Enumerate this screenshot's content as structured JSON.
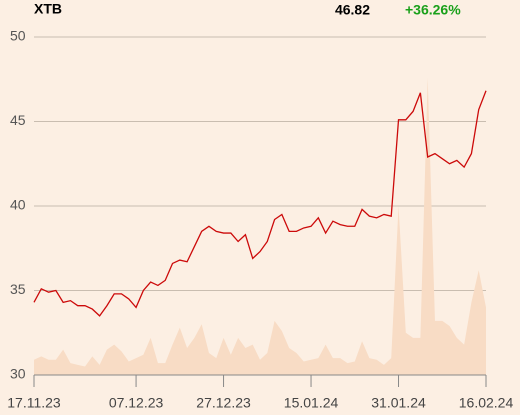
{
  "chart_data": {
    "type": "line",
    "title": "XTB",
    "price_label": "46.82",
    "change_label": "+36.26%",
    "change_color": "#1aa01a",
    "categories": [
      "17.11.23",
      null,
      null,
      null,
      null,
      null,
      null,
      null,
      null,
      null,
      null,
      null,
      null,
      null,
      "07.12.23",
      null,
      null,
      null,
      null,
      null,
      null,
      null,
      null,
      null,
      null,
      null,
      "27.12.23",
      null,
      null,
      null,
      null,
      null,
      null,
      null,
      null,
      null,
      null,
      null,
      "15.01.24",
      null,
      null,
      null,
      null,
      null,
      null,
      null,
      null,
      null,
      null,
      null,
      "31.01.24",
      null,
      null,
      null,
      null,
      null,
      null,
      null,
      null,
      null,
      null,
      null,
      "16.02.24"
    ],
    "series": [
      {
        "color": "#cc0a0a",
        "kind": "line",
        "values": [
          34.3,
          35.1,
          34.9,
          35.0,
          34.3,
          34.4,
          34.1,
          34.1,
          33.9,
          33.5,
          34.1,
          34.8,
          34.8,
          34.5,
          34.0,
          35.0,
          35.5,
          35.3,
          35.6,
          36.6,
          36.8,
          36.7,
          37.6,
          38.5,
          38.8,
          38.5,
          38.4,
          38.4,
          37.9,
          38.3,
          36.9,
          37.3,
          37.9,
          39.2,
          39.5,
          38.5,
          38.5,
          38.7,
          38.8,
          39.3,
          38.4,
          39.1,
          38.9,
          38.8,
          38.8,
          39.8,
          39.4,
          39.3,
          39.5,
          39.4,
          45.1,
          45.1,
          45.6,
          46.7,
          42.9,
          43.1,
          42.8,
          42.5,
          42.7,
          42.3,
          43.1,
          45.7,
          46.82
        ]
      },
      {
        "color": "#f8dcc5",
        "kind": "area",
        "values": [
          30.9,
          31.1,
          30.9,
          30.9,
          31.5,
          30.7,
          30.6,
          30.5,
          31.1,
          30.6,
          31.5,
          31.8,
          31.4,
          30.8,
          31.0,
          31.2,
          32.2,
          30.7,
          30.7,
          31.8,
          32.8,
          31.6,
          32.2,
          33.0,
          31.3,
          31.0,
          32.2,
          31.2,
          32.2,
          31.6,
          31.8,
          30.9,
          31.3,
          33.2,
          32.6,
          31.6,
          31.3,
          30.8,
          30.9,
          31.0,
          31.8,
          31.0,
          31.0,
          30.7,
          30.8,
          32.0,
          31.0,
          30.9,
          30.6,
          31.0,
          40.0,
          32.5,
          32.2,
          32.2,
          47.6,
          33.2,
          33.2,
          32.9,
          32.2,
          31.8,
          34.3,
          36.2,
          34.0
        ]
      }
    ],
    "ylim": [
      30,
      50
    ],
    "yticks": [
      30,
      35,
      40,
      45,
      50
    ],
    "grid": true
  }
}
